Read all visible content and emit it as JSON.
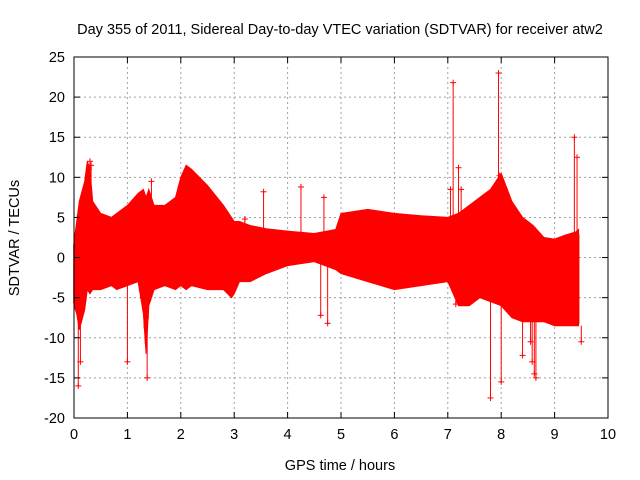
{
  "chart_data": {
    "type": "scatter",
    "title": "Day 355 of 2011, Sidereal Day-to-day VTEC variation (SDTVAR) for receiver atw2",
    "xlabel": "GPS time / hours",
    "ylabel": "SDTVAR / TECUs",
    "xlim": [
      0,
      10
    ],
    "ylim": [
      -20,
      25
    ],
    "xticks": [
      0,
      1,
      2,
      3,
      4,
      5,
      6,
      7,
      8,
      9,
      10
    ],
    "yticks": [
      -20,
      -15,
      -10,
      -5,
      0,
      5,
      10,
      15,
      20,
      25
    ],
    "grid": true,
    "series": [
      {
        "name": "SDTVAR",
        "color": "#ff0000",
        "style": "points with error bars",
        "envelope": {
          "x": [
            0.0,
            0.05,
            0.1,
            0.2,
            0.25,
            0.3,
            0.35,
            0.5,
            0.7,
            0.8,
            1.0,
            1.2,
            1.3,
            1.35,
            1.4,
            1.5,
            1.7,
            1.9,
            2.0,
            2.1,
            2.2,
            2.5,
            2.8,
            2.95,
            3.0,
            3.1,
            3.3,
            3.6,
            4.0,
            4.5,
            4.9,
            5.0,
            5.5,
            6.0,
            6.5,
            7.0,
            7.2,
            7.4,
            7.6,
            7.8,
            8.0,
            8.2,
            8.4,
            8.6,
            8.8,
            9.0,
            9.2,
            9.3,
            9.4,
            9.45
          ],
          "upper": [
            2.0,
            4.5,
            7.0,
            9.5,
            12.0,
            11.0,
            7.0,
            5.5,
            5.0,
            5.5,
            6.5,
            8.0,
            8.5,
            7.5,
            8.5,
            6.5,
            6.5,
            7.5,
            10.0,
            11.5,
            11.0,
            9.0,
            6.5,
            5.0,
            4.5,
            4.5,
            4.0,
            3.6,
            3.3,
            3.0,
            3.5,
            5.5,
            6.0,
            5.5,
            5.2,
            5.0,
            5.5,
            6.5,
            7.5,
            8.5,
            10.5,
            7.0,
            5.0,
            4.0,
            2.5,
            2.3,
            2.8,
            3.0,
            3.2,
            3.5
          ],
          "lower": [
            -6.0,
            -7.0,
            -9.0,
            -6.5,
            -4.0,
            -4.5,
            -4.0,
            -4.0,
            -3.5,
            -4.0,
            -3.5,
            -3.0,
            -7.0,
            -12.0,
            -6.0,
            -4.0,
            -3.5,
            -4.0,
            -3.5,
            -4.0,
            -3.5,
            -4.0,
            -4.0,
            -5.0,
            -4.5,
            -3.0,
            -3.0,
            -2.0,
            -1.0,
            -0.5,
            -1.5,
            -2.0,
            -3.0,
            -4.0,
            -3.5,
            -3.0,
            -6.0,
            -6.0,
            -5.0,
            -5.5,
            -6.0,
            -7.5,
            -8.0,
            -8.0,
            -8.0,
            -8.5,
            -8.5,
            -8.5,
            -8.5,
            -8.5
          ]
        },
        "outliers": {
          "x": [
            0.08,
            0.12,
            0.3,
            0.28,
            0.32,
            1.0,
            1.37,
            1.45,
            2.0,
            2.1,
            3.2,
            3.55,
            4.25,
            4.68,
            4.62,
            4.75,
            7.1,
            7.05,
            7.2,
            7.25,
            7.15,
            7.8,
            7.95,
            7.97,
            8.0,
            8.4,
            8.55,
            8.65,
            8.62,
            8.58,
            9.37,
            9.42,
            9.5
          ],
          "y": [
            -16.0,
            -13.0,
            12.0,
            11.0,
            11.5,
            -13.0,
            -15.0,
            9.5,
            8.8,
            9.0,
            4.8,
            8.2,
            8.8,
            7.5,
            -7.2,
            -8.2,
            21.8,
            8.5,
            11.2,
            8.5,
            -5.8,
            -17.5,
            23.0,
            10.2,
            -15.5,
            -12.2,
            -10.5,
            -15.0,
            -14.5,
            -13.0,
            15.0,
            12.5,
            -10.5
          ]
        }
      }
    ]
  }
}
